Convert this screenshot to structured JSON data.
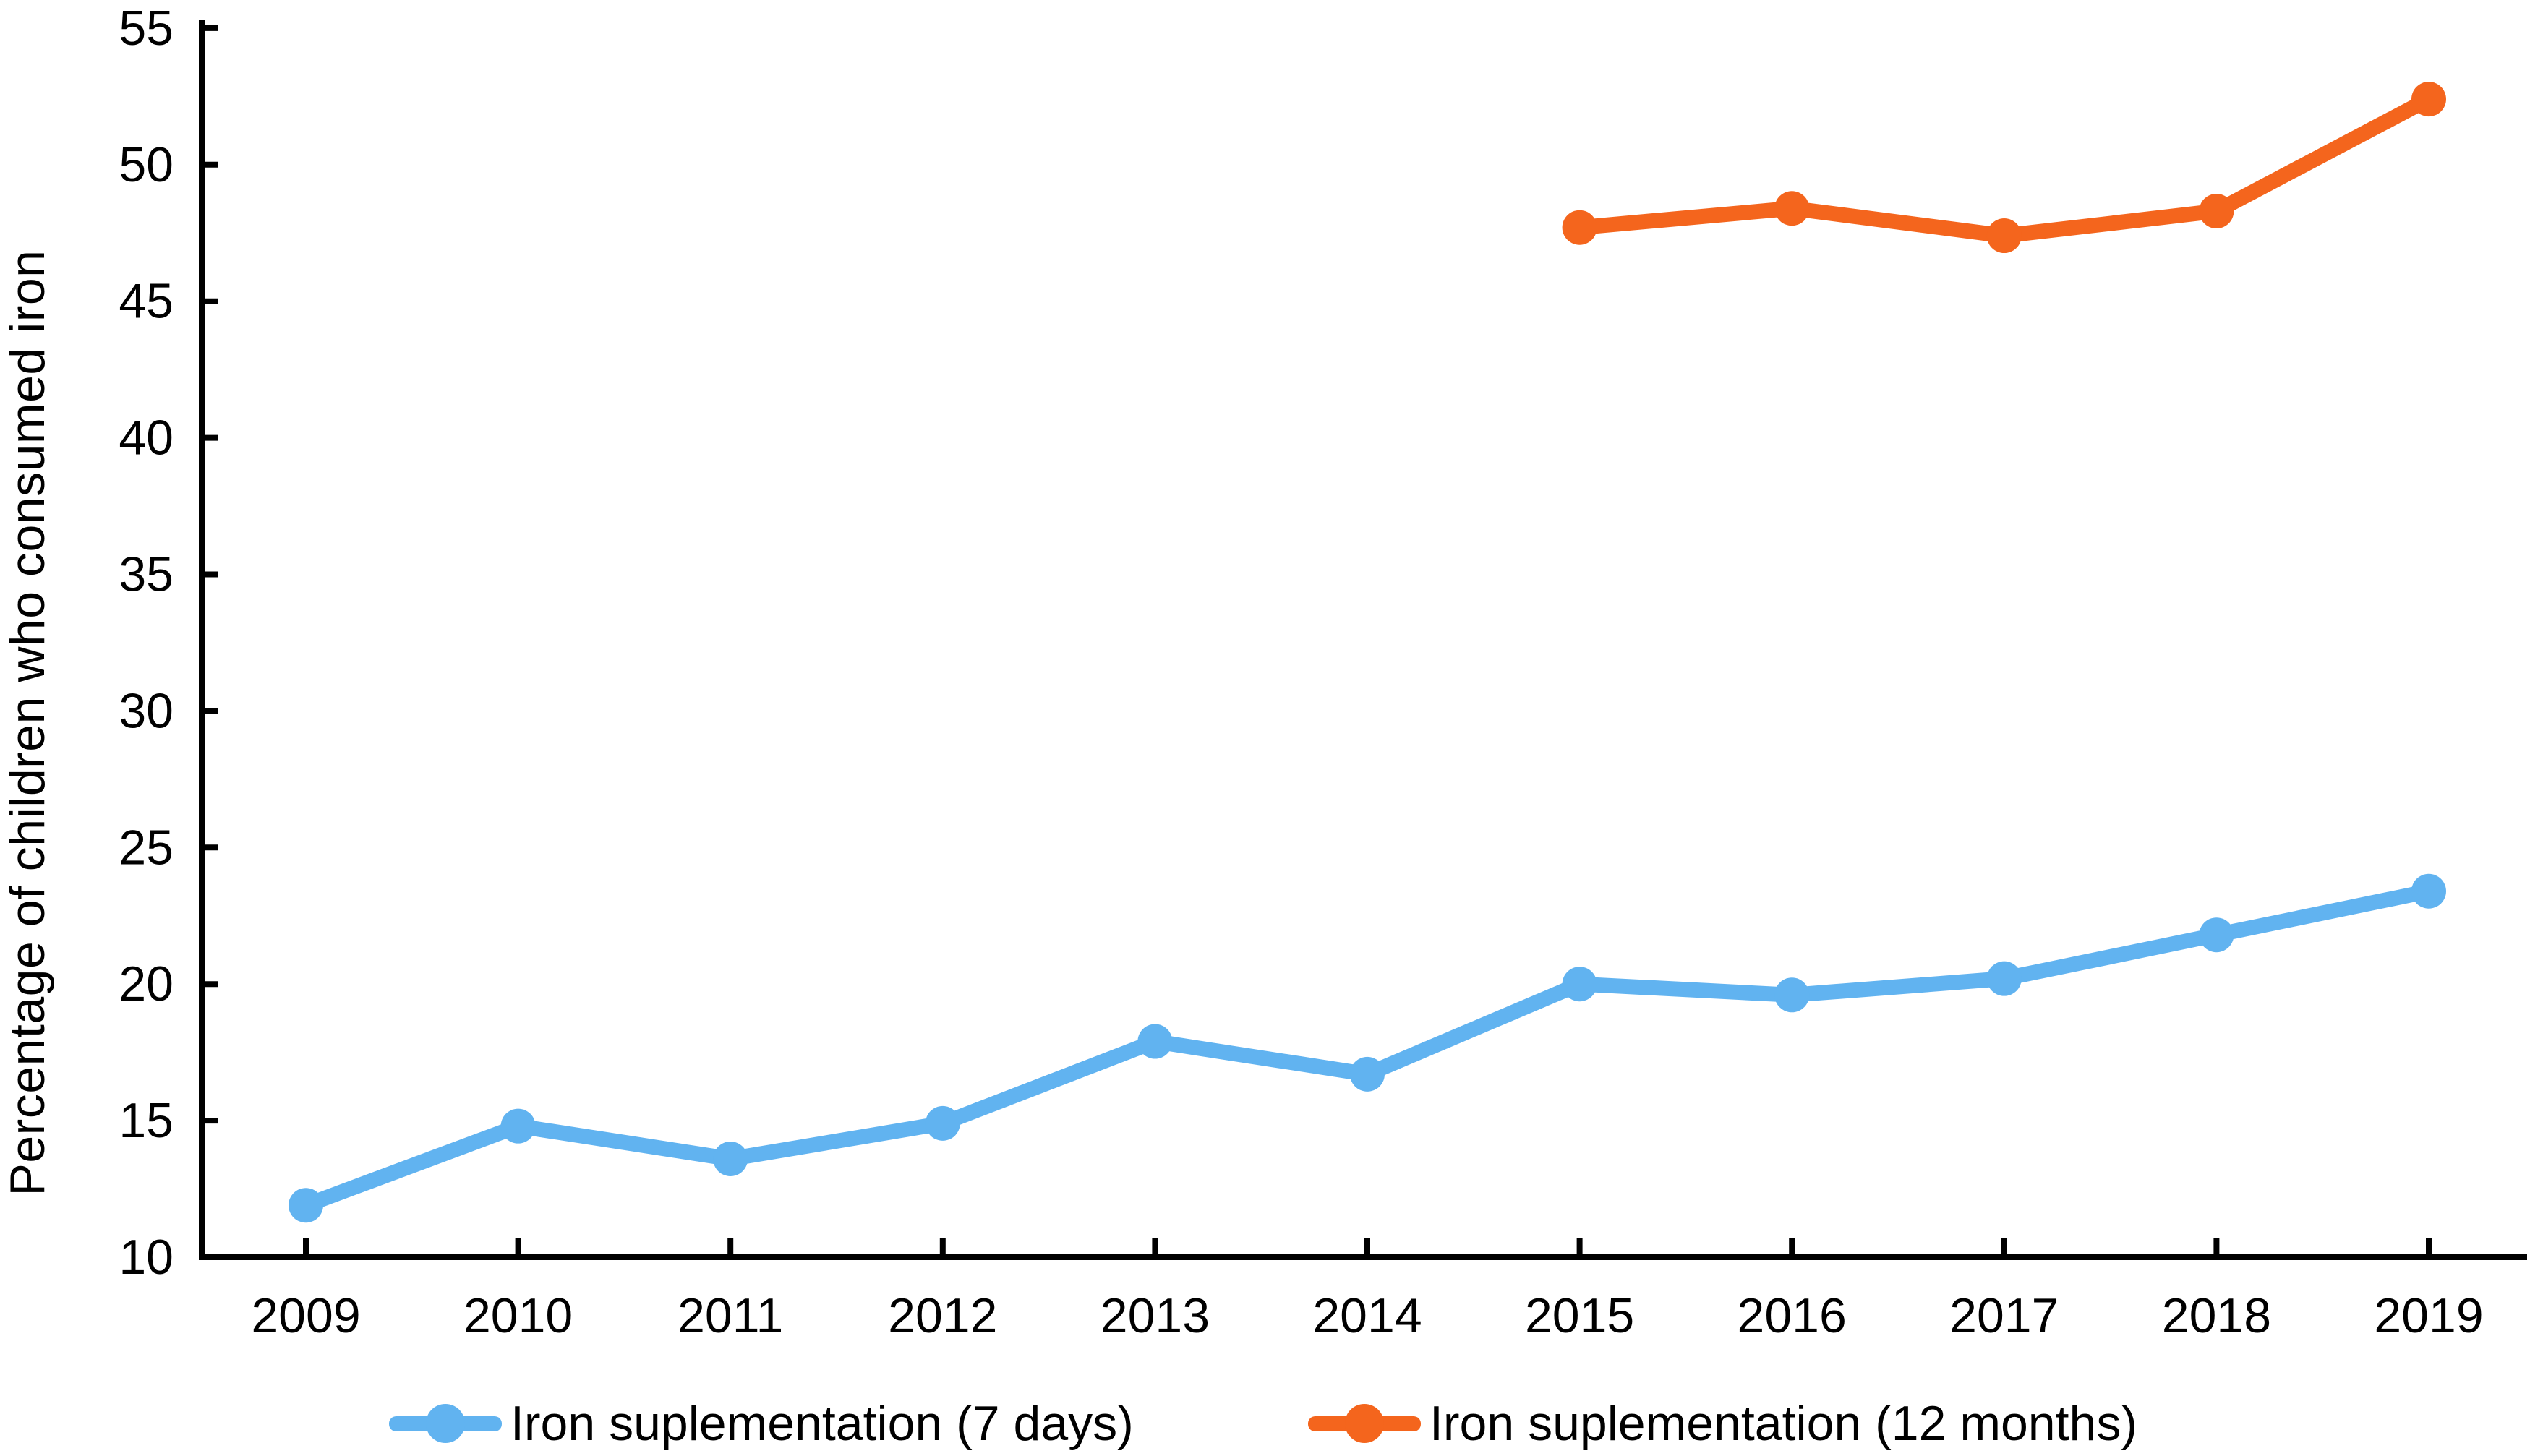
{
  "figure": {
    "background": "#ffffff",
    "axis_color": "#000000",
    "text_color": "#000000"
  },
  "chart_data": {
    "type": "line",
    "title": "",
    "xlabel": "",
    "ylabel": "Percentage of children who consumed iron",
    "ylim": [
      10,
      55
    ],
    "ytick_step": 5,
    "categories": [
      2009,
      2010,
      2011,
      2012,
      2013,
      2014,
      2015,
      2016,
      2017,
      2018,
      2019
    ],
    "grid": false,
    "legend_position": "bottom",
    "series": [
      {
        "name": "Iron suplementation (7 days)",
        "color": "#61B3F0",
        "x": [
          2009,
          2010,
          2011,
          2012,
          2013,
          2014,
          2015,
          2016,
          2017,
          2018,
          2019
        ],
        "values": [
          11.9,
          14.8,
          13.6,
          14.9,
          17.9,
          16.7,
          20.0,
          19.6,
          20.2,
          21.8,
          23.4
        ]
      },
      {
        "name": "Iron suplementation (12 months)",
        "color": "#F4651D",
        "x": [
          2015,
          2016,
          2017,
          2018,
          2019
        ],
        "values": [
          47.7,
          48.4,
          47.4,
          48.3,
          52.4
        ]
      }
    ]
  }
}
